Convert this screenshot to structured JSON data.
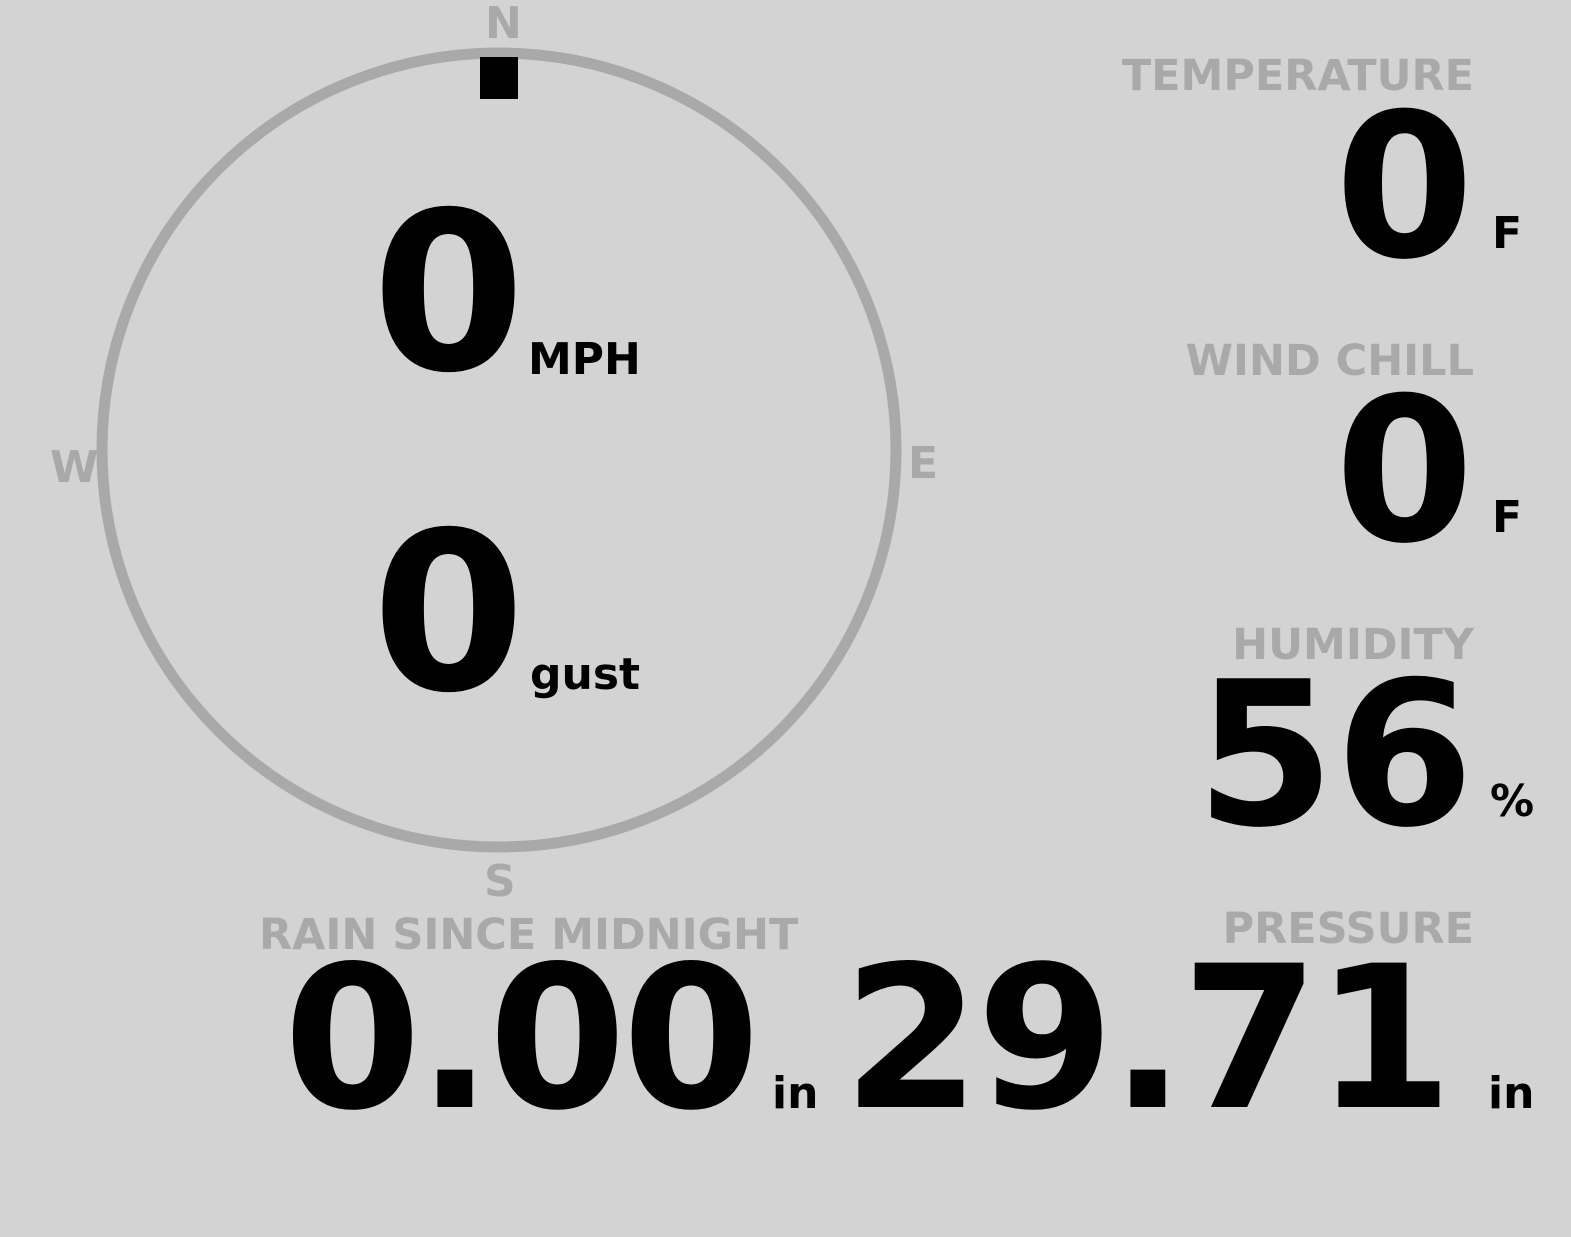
{
  "compass": {
    "cardinals": {
      "n": "N",
      "e": "E",
      "s": "S",
      "w": "W"
    },
    "wind_direction_deg": 0,
    "wind_speed": "0",
    "wind_speed_unit": "MPH",
    "gust": "0",
    "gust_unit": "gust"
  },
  "temperature": {
    "label": "TEMPERATURE",
    "value": "0",
    "unit": "F"
  },
  "wind_chill": {
    "label": "WIND CHILL",
    "value": "0",
    "unit": "F"
  },
  "humidity": {
    "label": "HUMIDITY",
    "value": "56",
    "unit": "%"
  },
  "rain": {
    "label": "RAIN SINCE MIDNIGHT",
    "value": "0.00",
    "unit": "in"
  },
  "pressure": {
    "label": "PRESSURE",
    "value": "29.71",
    "unit": "in"
  },
  "colors": {
    "background": "#d3d3d3",
    "muted": "#a9a9a9",
    "foreground": "#000000"
  }
}
